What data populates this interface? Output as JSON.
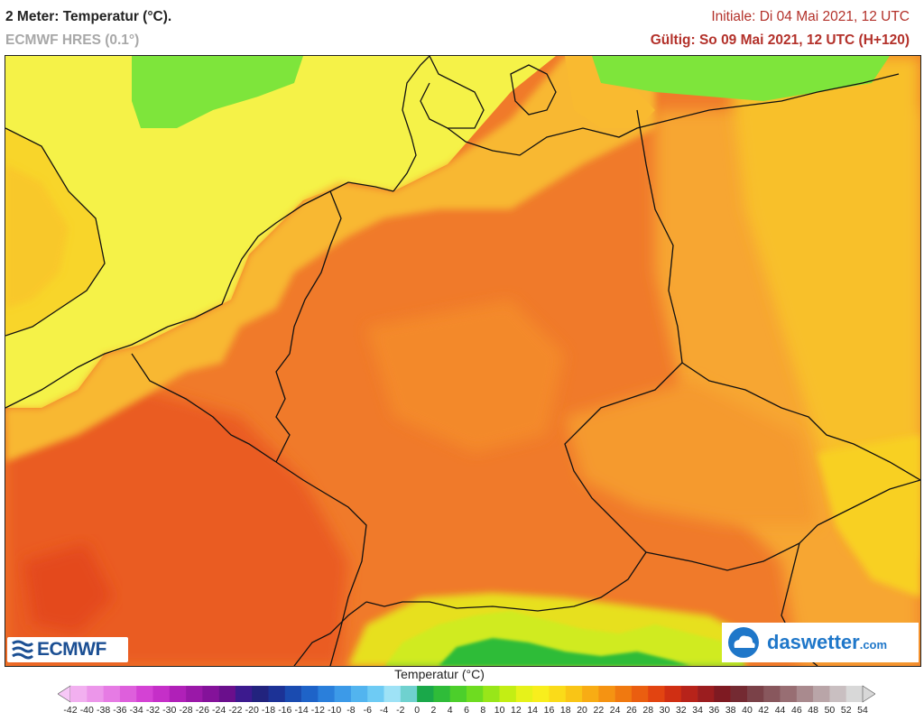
{
  "header": {
    "title": "2 Meter: Temperatur (°C).",
    "model": "ECMWF HRES (0.1°)",
    "init": "Initiale: Di 04 Mai 2021, 12 UTC",
    "valid": "Gültig: So 09 Mai 2021, 12 UTC (H+120)"
  },
  "logos": {
    "left": "ECMWF",
    "right_main": "daswetter",
    "right_suffix": ".com"
  },
  "legend": {
    "title": "Temperatur (°C)",
    "labels": [
      "-42",
      "-40",
      "-38",
      "-36",
      "-34",
      "-32",
      "-30",
      "-28",
      "-26",
      "-24",
      "-22",
      "-20",
      "-18",
      "-16",
      "-14",
      "-12",
      "-10",
      "-8",
      "-6",
      "-4",
      "-2",
      "0",
      "2",
      "4",
      "6",
      "8",
      "10",
      "12",
      "14",
      "16",
      "18",
      "20",
      "22",
      "24",
      "26",
      "28",
      "30",
      "32",
      "34",
      "36",
      "38",
      "40",
      "42",
      "44",
      "46",
      "48",
      "50",
      "52",
      "54"
    ],
    "colors": [
      "#f7c8f7",
      "#f2b0f0",
      "#ec96ea",
      "#e67be4",
      "#de5fdc",
      "#d442d4",
      "#c52fc8",
      "#b020b8",
      "#9a18a8",
      "#84129a",
      "#6a0f8c",
      "#3c1a8e",
      "#22237e",
      "#1c3296",
      "#1a4bb0",
      "#1e63c8",
      "#2a7fdb",
      "#3c9ae8",
      "#52b4ef",
      "#6ecbf4",
      "#9ee2f6",
      "#6fd1cf",
      "#1aa84a",
      "#2fbc39",
      "#4ccf2b",
      "#6edc20",
      "#98e619",
      "#c3ee14",
      "#e6f21a",
      "#f8ee1d",
      "#fadb19",
      "#f9c516",
      "#f8ac14",
      "#f59312",
      "#f07910",
      "#ea5e10",
      "#e24411",
      "#d02f13",
      "#b7231a",
      "#9b1d1f",
      "#7e1a22",
      "#742a32",
      "#7a4148",
      "#88575d",
      "#986e73",
      "#a98a8e",
      "#b9a5a8",
      "#c9bfc1",
      "#d8d8d8"
    ]
  },
  "colors": {
    "sea_cold": "#f5f544",
    "sea_green": "#7ee53b",
    "land_base": "#f07a2a",
    "land_warm": "#ee5c22",
    "land_mild": "#f59a2e",
    "east_mild": "#f7b02f",
    "alps": "#56c43a",
    "borders": "#111111"
  }
}
